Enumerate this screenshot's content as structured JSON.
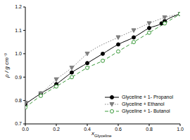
{
  "chart_data": {
    "type": "line",
    "xlabel": "xGlyceline",
    "ylabel": "ρ / g cm⁻³",
    "xlim": [
      0,
      1
    ],
    "xticks": [
      {
        "value": 0,
        "label": "0.0"
      },
      0.2,
      0.4,
      0.6,
      0.8,
      {
        "value": 1,
        "label": "1.0"
      }
    ],
    "ylim": [
      0.7,
      1.2
    ],
    "yticks": [
      0.7,
      0.8,
      0.9,
      {
        "value": 1,
        "label": "1.0"
      },
      1.1,
      1.2
    ],
    "legend": "lower right",
    "grid": false,
    "series": [
      {
        "name": "Glyceline + 1- Propanol",
        "color": "#000000",
        "marker": "circle",
        "line_style": "solid",
        "x": [
          0,
          0.1,
          0.2,
          0.3,
          0.4,
          0.5,
          0.6,
          0.7,
          0.8,
          0.88,
          0.9,
          1.0
        ],
        "values": [
          0.785,
          0.83,
          0.87,
          0.92,
          0.96,
          1.0,
          1.04,
          1.07,
          1.11,
          1.13,
          1.14,
          1.17
        ]
      },
      {
        "name": "Glyceline + Ethanol",
        "color": "#808080",
        "marker": "triangle_down",
        "line_style": "dotted",
        "x": [
          0,
          0.1,
          0.2,
          0.3,
          0.4,
          0.6,
          0.7,
          0.8,
          0.9,
          1.0
        ],
        "values": [
          0.79,
          0.83,
          0.89,
          0.94,
          1.0,
          1.07,
          1.1,
          1.13,
          1.155,
          1.17
        ]
      },
      {
        "name": "Glyceline + 1- Butanol",
        "color": "#3a9a3a",
        "marker": "circle_open",
        "line_style": "dashed",
        "x": [
          0,
          0.1,
          0.2,
          0.3,
          0.4,
          0.5,
          0.6,
          0.7,
          0.8,
          0.9,
          1.0
        ],
        "values": [
          0.77,
          0.82,
          0.86,
          0.9,
          0.94,
          0.97,
          1.01,
          1.05,
          1.09,
          1.13,
          1.17
        ]
      }
    ]
  }
}
